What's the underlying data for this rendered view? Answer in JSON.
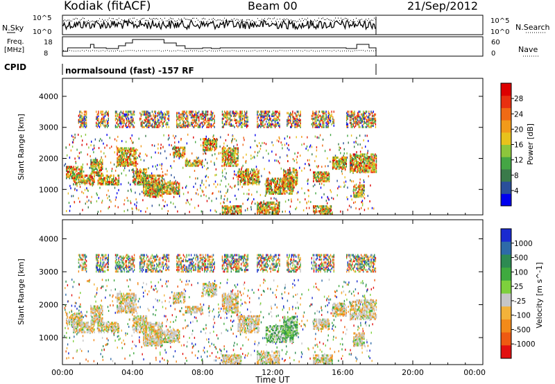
{
  "header": {
    "station": "Kodiak (fitACF)",
    "beam": "Beam 00",
    "date": "21/Sep/2012"
  },
  "labels": {
    "nsky": "N.Sky",
    "freq": "Freq.",
    "freq_unit": "[MHz]",
    "cpid": "CPID",
    "nsearch": "N.Search",
    "nave": "Nave",
    "cpid_value": "normalsound (fast) -157 RF"
  },
  "noise_axis": {
    "left_ticks": [
      "10^5",
      "10^0"
    ],
    "right_ticks": [
      "10^5",
      "10^0"
    ]
  },
  "freq_axis": {
    "left_ticks": [
      "18",
      "8"
    ],
    "right_ticks": [
      "60",
      "0"
    ]
  },
  "colors": {
    "frame": "#000000",
    "background": "#ffffff"
  },
  "chart_data": [
    {
      "type": "heatmap",
      "title": "",
      "xlabel": "Time UT",
      "ylabel": "Slant Range [km]",
      "x_ticks": [
        "00:00",
        "04:00",
        "08:00",
        "12:00",
        "16:00",
        "20:00",
        "00:00"
      ],
      "xlim_hours": [
        0,
        24
      ],
      "y_ticks": [
        1000,
        2000,
        3000,
        4000
      ],
      "ylim": [
        180,
        4580
      ],
      "colorbar": {
        "label": "Power [dB]",
        "ticks": [
          "4",
          "8",
          "12",
          "16",
          "20",
          "24",
          "28"
        ],
        "colors": [
          "#0000ee",
          "#2a4f9a",
          "#3a7a4a",
          "#44a644",
          "#8cc63c",
          "#e8c21c",
          "#f29a1a",
          "#f06a14",
          "#e83010",
          "#dd0000"
        ]
      },
      "data_end_hour": 17.9,
      "activity_blocks": [
        {
          "start": 0.9,
          "end": 1.4
        },
        {
          "start": 1.9,
          "end": 2.6
        },
        {
          "start": 3.0,
          "end": 4.1
        },
        {
          "start": 4.4,
          "end": 6.1
        },
        {
          "start": 6.5,
          "end": 8.7
        },
        {
          "start": 9.1,
          "end": 10.6
        },
        {
          "start": 11.1,
          "end": 12.4
        },
        {
          "start": 12.8,
          "end": 13.6
        },
        {
          "start": 14.2,
          "end": 15.5
        },
        {
          "start": 16.2,
          "end": 17.9
        }
      ]
    },
    {
      "type": "heatmap",
      "title": "",
      "xlabel": "Time UT",
      "ylabel": "Slant Range [km]",
      "x_ticks": [
        "00:00",
        "04:00",
        "08:00",
        "12:00",
        "16:00",
        "20:00",
        "00:00"
      ],
      "xlim_hours": [
        0,
        24
      ],
      "y_ticks": [
        1000,
        2000,
        3000,
        4000
      ],
      "ylim": [
        180,
        4580
      ],
      "colorbar": {
        "label": "Velocity [m s^-1]",
        "ticks": [
          "1000",
          "500",
          "100",
          "25",
          "-25",
          "-100",
          "-500",
          "-1000"
        ],
        "colors": [
          "#1a2ad0",
          "#2e6aa8",
          "#2d8a52",
          "#3faa3f",
          "#7ed03c",
          "#c6c6c6",
          "#f2b23a",
          "#f28a1a",
          "#ee5a12",
          "#e21010"
        ]
      },
      "data_end_hour": 17.9
    }
  ]
}
